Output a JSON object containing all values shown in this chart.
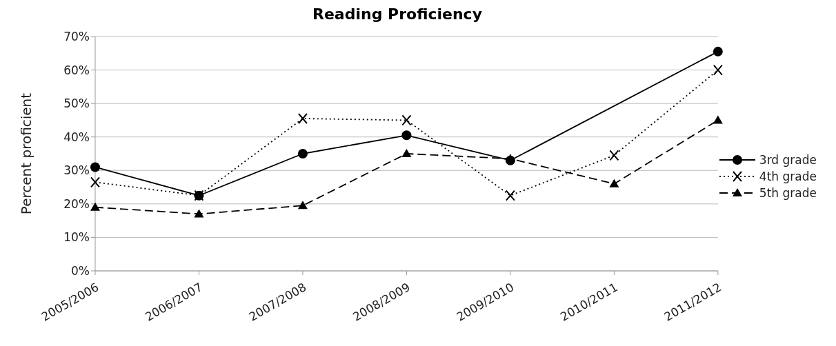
{
  "chart_data": {
    "type": "line",
    "title": "Reading Proficiency",
    "ylabel": "Percent proficient",
    "categories": [
      "2005/2006",
      "2006/2007",
      "2007/2008",
      "2008/2009",
      "2009/2010",
      "2010/2011",
      "2011/2012"
    ],
    "series": [
      {
        "name": "3rd grade",
        "color": "#000000",
        "marker": "circle",
        "line_style": "solid",
        "values": [
          31,
          22.5,
          35,
          40.5,
          33,
          null,
          65.5
        ]
      },
      {
        "name": "4th grade",
        "color": "#000000",
        "marker": "cross",
        "line_style": "dotted",
        "values": [
          26.5,
          22.5,
          45.5,
          45,
          22.5,
          34.5,
          60
        ]
      },
      {
        "name": "5th grade",
        "color": "#000000",
        "marker": "triangle",
        "line_style": "dashed",
        "values": [
          19,
          17,
          19.5,
          35,
          33.5,
          26,
          45
        ]
      }
    ],
    "ylim": [
      0,
      70
    ],
    "yticks": [
      {
        "value": 0,
        "label": "0%"
      },
      {
        "value": 10,
        "label": "10%"
      },
      {
        "value": 20,
        "label": "20%"
      },
      {
        "value": 30,
        "label": "30%"
      },
      {
        "value": 40,
        "label": "40%"
      },
      {
        "value": 50,
        "label": "50%"
      },
      {
        "value": 60,
        "label": "60%"
      },
      {
        "value": 70,
        "label": "70%"
      }
    ],
    "grid": "y",
    "legend": "right"
  }
}
